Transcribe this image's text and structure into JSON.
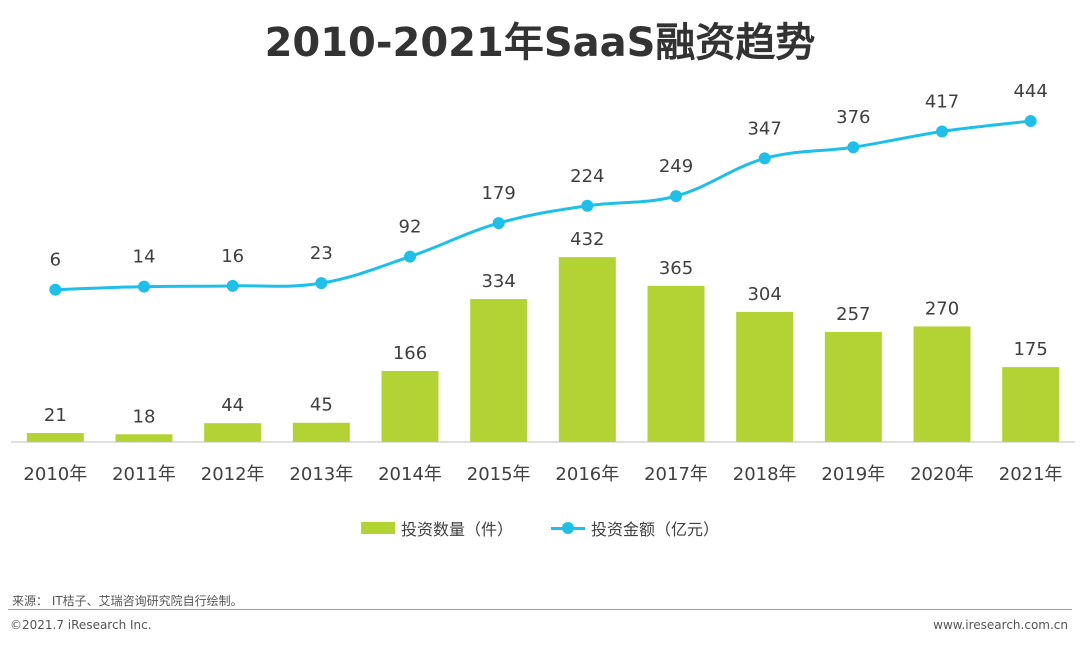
{
  "title": "2010-2021年SaaS融资趋势",
  "chart_data": {
    "type": "bar",
    "categories": [
      "2010年",
      "2011年",
      "2012年",
      "2013年",
      "2014年",
      "2015年",
      "2016年",
      "2017年",
      "2018年",
      "2019年",
      "2020年",
      "2021年"
    ],
    "series": [
      {
        "name": "投资数量（件）",
        "type": "bar",
        "color": "#b3d334",
        "values": [
          21,
          18,
          44,
          45,
          166,
          334,
          432,
          365,
          304,
          257,
          270,
          175
        ]
      },
      {
        "name": "投资金额（亿元）",
        "type": "line",
        "color": "#1ec0ea",
        "values": [
          6,
          14,
          16,
          23,
          92,
          179,
          224,
          249,
          347,
          376,
          417,
          444
        ]
      }
    ],
    "xlabel": "",
    "ylabel": "",
    "grid": false,
    "legend": "bottom"
  },
  "legend": {
    "bar_label": "投资数量（件）",
    "line_label": "投资金额（亿元）"
  },
  "footer": {
    "source": "来源： IT桔子、艾瑞咨询研究院自行绘制。",
    "copyright": "©2021.7 iResearch Inc.",
    "site": "www.iresearch.com.cn"
  }
}
